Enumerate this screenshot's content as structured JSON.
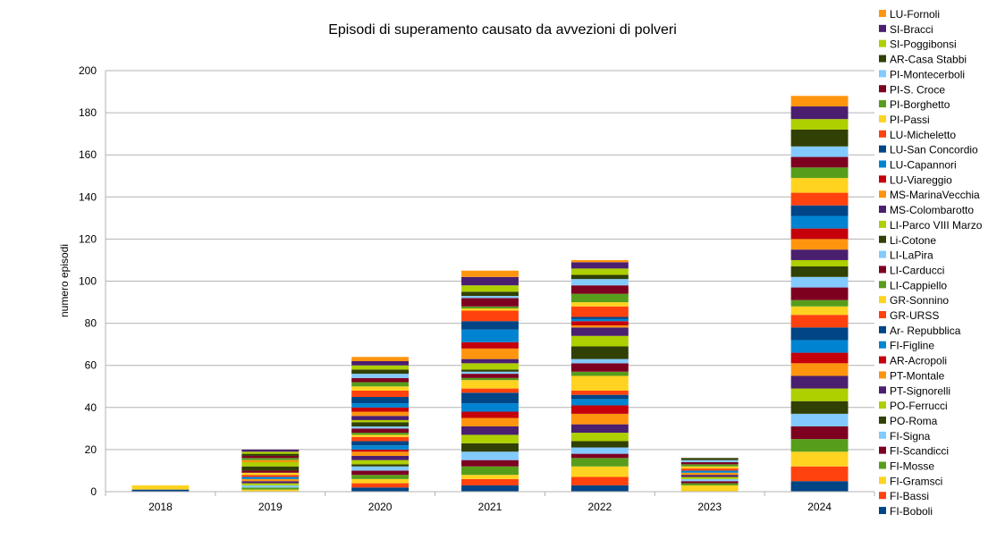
{
  "chart_data": {
    "type": "bar",
    "stacked": true,
    "title": "Episodi di superamento causato da avvezioni di polveri",
    "xlabel": "",
    "ylabel": "numero episodi",
    "ylim": [
      0,
      200
    ],
    "yticks": [
      0,
      20,
      40,
      60,
      80,
      100,
      120,
      140,
      160,
      180,
      200
    ],
    "grid": true,
    "legend_position": "right",
    "categories": [
      "2018",
      "2019",
      "2020",
      "2021",
      "2022",
      "2023",
      "2024"
    ],
    "series": [
      {
        "name": "FI-Boboli",
        "color": "#004586",
        "values": [
          1,
          0,
          2,
          3,
          3,
          0,
          5
        ]
      },
      {
        "name": "FI-Bassi",
        "color": "#ff420e",
        "values": [
          0,
          0,
          2,
          3,
          4,
          0,
          7
        ]
      },
      {
        "name": "FI-Gramsci",
        "color": "#ffd320",
        "values": [
          2,
          1,
          2,
          2,
          5,
          3,
          7
        ]
      },
      {
        "name": "FI-Mosse",
        "color": "#579d1c",
        "values": [
          0,
          1,
          2,
          4,
          4,
          1,
          6
        ]
      },
      {
        "name": "FI-Scandicci",
        "color": "#7e0021",
        "values": [
          0,
          0,
          2,
          3,
          2,
          1,
          6
        ]
      },
      {
        "name": "FI-Signa",
        "color": "#83caff",
        "values": [
          0,
          1,
          2,
          4,
          3,
          1,
          6
        ]
      },
      {
        "name": "PO-Roma",
        "color": "#314004",
        "values": [
          0,
          0,
          1,
          4,
          3,
          0,
          6
        ]
      },
      {
        "name": "PO-Ferrucci",
        "color": "#aecf00",
        "values": [
          0,
          1,
          2,
          4,
          4,
          1,
          6
        ]
      },
      {
        "name": "PT-Signorelli",
        "color": "#4b1f6f",
        "values": [
          0,
          1,
          2,
          4,
          4,
          1,
          6
        ]
      },
      {
        "name": "PT-Montale",
        "color": "#ff950e",
        "values": [
          0,
          1,
          2,
          4,
          5,
          1,
          6
        ]
      },
      {
        "name": "AR-Acropoli",
        "color": "#c5000b",
        "values": [
          0,
          0,
          1,
          3,
          4,
          0,
          5
        ]
      },
      {
        "name": "FI-Figline",
        "color": "#0084d1",
        "values": [
          0,
          1,
          2,
          4,
          3,
          1,
          6
        ]
      },
      {
        "name": "Ar- Repubblica",
        "color": "#004586",
        "values": [
          0,
          0,
          2,
          5,
          2,
          0,
          6
        ]
      },
      {
        "name": "GR-URSS",
        "color": "#ff420e",
        "values": [
          0,
          1,
          2,
          2,
          2,
          1,
          6
        ]
      },
      {
        "name": "GR-Sonnino",
        "color": "#ffd320",
        "values": [
          0,
          1,
          1,
          4,
          7,
          1,
          4
        ]
      },
      {
        "name": "LI-Cappiello",
        "color": "#579d1c",
        "values": [
          0,
          0,
          1,
          1,
          2,
          1,
          3
        ]
      },
      {
        "name": "LI-Carducci",
        "color": "#7e0021",
        "values": [
          0,
          1,
          2,
          2,
          4,
          1,
          6
        ]
      },
      {
        "name": "LI-LaPira",
        "color": "#83caff",
        "values": [
          0,
          0,
          1,
          1,
          2,
          1,
          5
        ]
      },
      {
        "name": "Li-Cotone",
        "color": "#314004",
        "values": [
          0,
          2,
          2,
          1,
          6,
          1,
          5
        ]
      },
      {
        "name": "LI-Parco VIII Marzo",
        "color": "#aecf00",
        "values": [
          0,
          2,
          1,
          3,
          5,
          0,
          3
        ]
      },
      {
        "name": "MS-Colombarotto",
        "color": "#4b1f6f",
        "values": [
          0,
          0,
          2,
          2,
          4,
          0,
          5
        ]
      },
      {
        "name": "MS-MarinaVecchia",
        "color": "#ff950e",
        "values": [
          0,
          1,
          2,
          5,
          1,
          0,
          5
        ]
      },
      {
        "name": "LU-Viareggio",
        "color": "#c5000b",
        "values": [
          0,
          0,
          2,
          3,
          2,
          0,
          5
        ]
      },
      {
        "name": "LU-Capannori",
        "color": "#0084d1",
        "values": [
          0,
          0,
          2,
          6,
          1,
          0,
          6
        ]
      },
      {
        "name": "LU-San Concordio",
        "color": "#004586",
        "values": [
          0,
          0,
          3,
          4,
          1,
          0,
          5
        ]
      },
      {
        "name": "LU-Micheletto",
        "color": "#ff420e",
        "values": [
          0,
          0,
          3,
          5,
          5,
          0,
          6
        ]
      },
      {
        "name": "PI-Passi",
        "color": "#ffd320",
        "values": [
          0,
          0,
          2,
          1,
          2,
          0,
          7
        ]
      },
      {
        "name": "PI-Borghetto",
        "color": "#579d1c",
        "values": [
          0,
          1,
          2,
          1,
          4,
          0,
          5
        ]
      },
      {
        "name": "PI-S. Croce",
        "color": "#7e0021",
        "values": [
          0,
          1,
          2,
          4,
          4,
          0,
          5
        ]
      },
      {
        "name": "PI-Montecerboli",
        "color": "#83caff",
        "values": [
          0,
          0,
          2,
          1,
          3,
          0,
          5
        ]
      },
      {
        "name": "AR-Casa Stabbi",
        "color": "#314004",
        "values": [
          0,
          1,
          2,
          2,
          2,
          0,
          8
        ]
      },
      {
        "name": "SI-Poggibonsi",
        "color": "#aecf00",
        "values": [
          0,
          1,
          2,
          3,
          3,
          0,
          5
        ]
      },
      {
        "name": "SI-Bracci",
        "color": "#4b1f6f",
        "values": [
          0,
          1,
          2,
          4,
          3,
          0,
          6
        ]
      },
      {
        "name": "LU-Fornoli",
        "color": "#ff950e",
        "values": [
          0,
          0,
          2,
          3,
          1,
          0,
          5
        ]
      }
    ]
  }
}
